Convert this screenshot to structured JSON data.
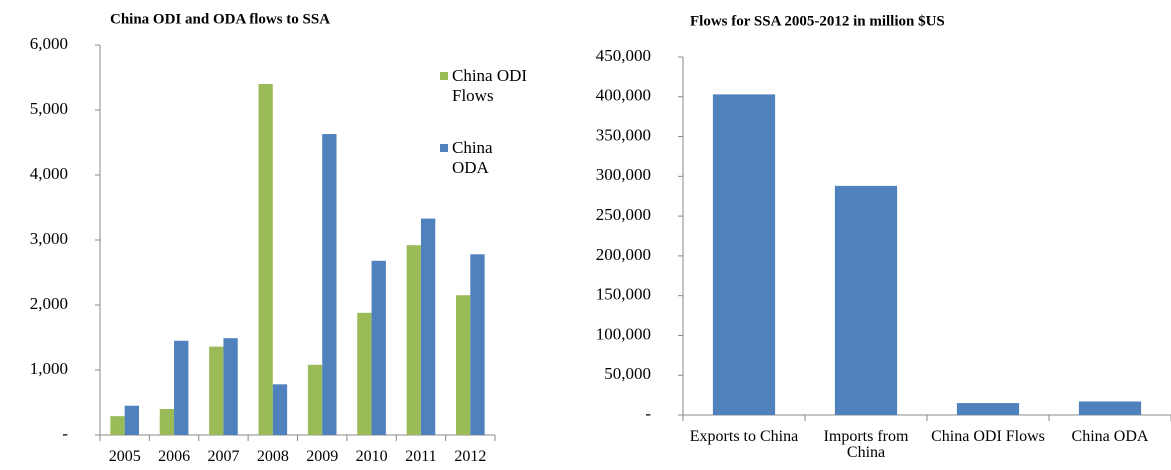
{
  "chart_data": [
    {
      "type": "bar",
      "title": "China ODI and ODA flows to SSA",
      "categories": [
        "2005",
        "2006",
        "2007",
        "2008",
        "2009",
        "2010",
        "2011",
        "2012"
      ],
      "series": [
        {
          "name": "China ODI Flows",
          "color": "#9bbb59",
          "values": [
            290,
            400,
            1360,
            5400,
            1080,
            1880,
            2920,
            2150
          ]
        },
        {
          "name": "China ODA",
          "color": "#4f81bd",
          "values": [
            450,
            1450,
            1490,
            780,
            4630,
            2680,
            3330,
            2780
          ]
        }
      ],
      "ylim": [
        0,
        6000
      ],
      "yticks": [
        {
          "value": 0,
          "label": "-"
        },
        {
          "value": 1000,
          "label": "1,000"
        },
        {
          "value": 2000,
          "label": "2,000"
        },
        {
          "value": 3000,
          "label": "3,000"
        },
        {
          "value": 4000,
          "label": "4,000"
        },
        {
          "value": 5000,
          "label": "5,000"
        },
        {
          "value": 6000,
          "label": "6,000"
        }
      ],
      "legend": "right"
    },
    {
      "type": "bar",
      "title": "Flows for SSA 2005-2012 in million $US",
      "categories": [
        "Exports to China",
        "Imports from China",
        "China ODI Flows",
        "China ODA"
      ],
      "series": [
        {
          "name": null,
          "color": "#4f81bd",
          "values": [
            403000,
            288000,
            15000,
            17000
          ]
        }
      ],
      "ylim": [
        0,
        450000
      ],
      "yticks": [
        {
          "value": 0,
          "label": "-"
        },
        {
          "value": 50000,
          "label": "50,000"
        },
        {
          "value": 100000,
          "label": "100,000"
        },
        {
          "value": 150000,
          "label": "150,000"
        },
        {
          "value": 200000,
          "label": "200,000"
        },
        {
          "value": 250000,
          "label": "250,000"
        },
        {
          "value": 300000,
          "label": "300,000"
        },
        {
          "value": 350000,
          "label": "350,000"
        },
        {
          "value": 400000,
          "label": "400,000"
        },
        {
          "value": 450000,
          "label": "450,000"
        }
      ]
    }
  ]
}
